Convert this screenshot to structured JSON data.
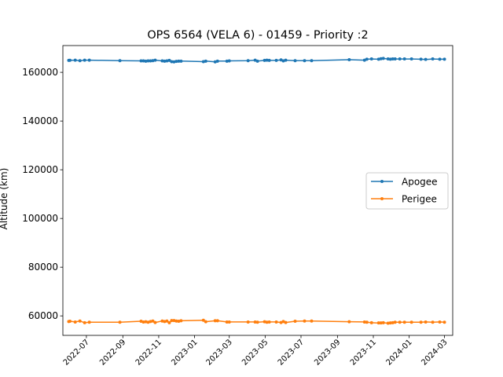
{
  "chart_data": {
    "type": "line",
    "title": "OPS 6564 (VELA 6) - 01459 - Priority :2",
    "xlabel": "",
    "ylabel": "Altitude (km)",
    "xlim": [
      "2022-05-22",
      "2024-03-15"
    ],
    "ylim": [
      52000,
      171000
    ],
    "grid": false,
    "legend_position": "center-right",
    "x_ticks": [
      "2022-07",
      "2022-09",
      "2022-11",
      "2023-01",
      "2023-03",
      "2023-05",
      "2023-07",
      "2023-09",
      "2023-11",
      "2024-01",
      "2024-03"
    ],
    "y_ticks": [
      "60000",
      "80000",
      "100000",
      "120000",
      "140000",
      "160000"
    ],
    "series": [
      {
        "name": "Apogee",
        "color": "#1f77b4",
        "x": [
          "2022-06-01",
          "2022-06-03",
          "2022-06-12",
          "2022-06-20",
          "2022-06-28",
          "2022-07-06",
          "2022-08-27",
          "2022-10-02",
          "2022-10-06",
          "2022-10-10",
          "2022-10-14",
          "2022-10-18",
          "2022-10-22",
          "2022-10-26",
          "2022-11-07",
          "2022-11-11",
          "2022-11-15",
          "2022-11-19",
          "2022-11-23",
          "2022-11-27",
          "2022-12-01",
          "2022-12-05",
          "2022-12-09",
          "2023-01-16",
          "2023-01-20",
          "2023-02-05",
          "2023-02-09",
          "2023-02-25",
          "2023-03-01",
          "2023-04-02",
          "2023-04-14",
          "2023-04-18",
          "2023-04-30",
          "2023-05-04",
          "2023-05-08",
          "2023-05-20",
          "2023-05-28",
          "2023-06-01",
          "2023-06-05",
          "2023-06-21",
          "2023-07-07",
          "2023-07-19",
          "2023-09-21",
          "2023-10-17",
          "2023-10-21",
          "2023-10-29",
          "2023-11-10",
          "2023-11-14",
          "2023-11-18",
          "2023-11-26",
          "2023-11-30",
          "2023-12-04",
          "2023-12-08",
          "2023-12-16",
          "2023-12-24",
          "2024-01-05",
          "2024-01-21",
          "2024-01-29",
          "2024-02-10",
          "2024-02-22",
          "2024-03-01"
        ],
        "values": [
          164900,
          164950,
          165000,
          164800,
          165000,
          165000,
          164800,
          164700,
          164700,
          164600,
          164700,
          164700,
          164800,
          165000,
          164700,
          164600,
          164700,
          164900,
          164400,
          164300,
          164500,
          164600,
          164600,
          164400,
          164600,
          164300,
          164600,
          164600,
          164700,
          164800,
          165000,
          164600,
          164900,
          165000,
          164900,
          164900,
          165100,
          164700,
          165000,
          164800,
          164800,
          164800,
          165200,
          165000,
          165400,
          165500,
          165400,
          165600,
          165700,
          165500,
          165400,
          165500,
          165500,
          165500,
          165500,
          165500,
          165400,
          165300,
          165500,
          165400,
          165400
        ]
      },
      {
        "name": "Perigee",
        "color": "#ff7f0e",
        "x": [
          "2022-06-01",
          "2022-06-03",
          "2022-06-12",
          "2022-06-20",
          "2022-06-28",
          "2022-07-06",
          "2022-08-27",
          "2022-10-02",
          "2022-10-06",
          "2022-10-10",
          "2022-10-14",
          "2022-10-18",
          "2022-10-22",
          "2022-10-26",
          "2022-11-07",
          "2022-11-11",
          "2022-11-15",
          "2022-11-19",
          "2022-11-23",
          "2022-11-27",
          "2022-12-01",
          "2022-12-05",
          "2022-12-09",
          "2023-01-16",
          "2023-01-20",
          "2023-02-05",
          "2023-02-09",
          "2023-02-25",
          "2023-03-01",
          "2023-04-02",
          "2023-04-14",
          "2023-04-18",
          "2023-04-30",
          "2023-05-04",
          "2023-05-08",
          "2023-05-20",
          "2023-05-28",
          "2023-06-01",
          "2023-06-05",
          "2023-06-21",
          "2023-07-07",
          "2023-07-19",
          "2023-09-21",
          "2023-10-17",
          "2023-10-21",
          "2023-10-29",
          "2023-11-10",
          "2023-11-14",
          "2023-11-18",
          "2023-11-26",
          "2023-11-30",
          "2023-12-04",
          "2023-12-08",
          "2023-12-16",
          "2023-12-24",
          "2024-01-05",
          "2024-01-21",
          "2024-01-29",
          "2024-02-10",
          "2024-02-22",
          "2024-03-01"
        ],
        "values": [
          57700,
          57800,
          57500,
          57900,
          57200,
          57400,
          57400,
          57800,
          57500,
          57600,
          57400,
          57700,
          57900,
          57300,
          57900,
          57700,
          57900,
          57200,
          58100,
          58100,
          57900,
          57800,
          58000,
          58200,
          57600,
          58000,
          58000,
          57500,
          57500,
          57500,
          57500,
          57400,
          57600,
          57400,
          57500,
          57500,
          57300,
          57700,
          57300,
          57800,
          57900,
          57900,
          57600,
          57500,
          57400,
          57200,
          57100,
          57100,
          57200,
          57000,
          57100,
          57200,
          57400,
          57400,
          57400,
          57400,
          57400,
          57500,
          57400,
          57500,
          57400
        ]
      }
    ]
  }
}
